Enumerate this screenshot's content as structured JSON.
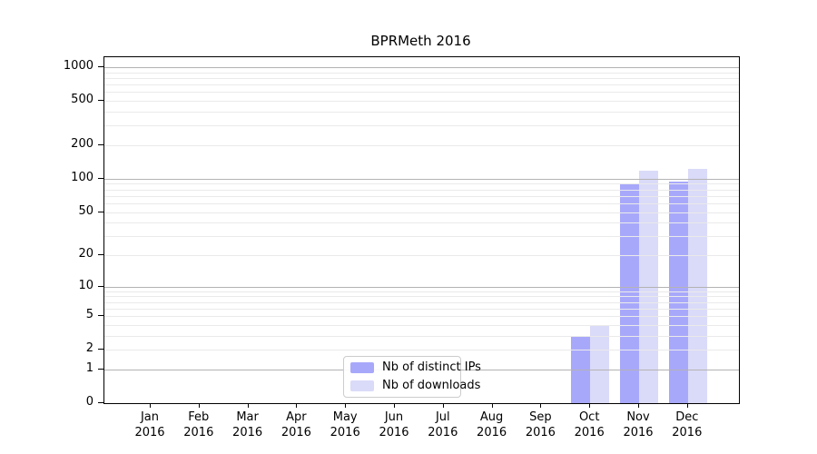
{
  "chart_data": {
    "type": "bar",
    "title": "BPRMeth 2016",
    "y_scale": "log10(1 + value)",
    "grid": true,
    "legend_position": "lower center",
    "y_axis_top": 1230,
    "x_categories": [
      {
        "month": "Jan",
        "year": "2016"
      },
      {
        "month": "Feb",
        "year": "2016"
      },
      {
        "month": "Mar",
        "year": "2016"
      },
      {
        "month": "Apr",
        "year": "2016"
      },
      {
        "month": "May",
        "year": "2016"
      },
      {
        "month": "Jun",
        "year": "2016"
      },
      {
        "month": "Jul",
        "year": "2016"
      },
      {
        "month": "Aug",
        "year": "2016"
      },
      {
        "month": "Sep",
        "year": "2016"
      },
      {
        "month": "Oct",
        "year": "2016"
      },
      {
        "month": "Nov",
        "year": "2016"
      },
      {
        "month": "Dec",
        "year": "2016"
      }
    ],
    "y_ticks": [
      {
        "value": 0,
        "label": "0"
      },
      {
        "value": 1,
        "label": "1"
      },
      {
        "value": 2,
        "label": "2"
      },
      {
        "value": 5,
        "label": "5"
      },
      {
        "value": 10,
        "label": "10"
      },
      {
        "value": 20,
        "label": "20"
      },
      {
        "value": 50,
        "label": "50"
      },
      {
        "value": 100,
        "label": "100"
      },
      {
        "value": 200,
        "label": "200"
      },
      {
        "value": 500,
        "label": "500"
      },
      {
        "value": 1000,
        "label": "1000"
      }
    ],
    "series": [
      {
        "name": "Nb of distinct IPs",
        "color": "#a8a8fb",
        "values": [
          0,
          0,
          0,
          0,
          0,
          0,
          0,
          0,
          0,
          3,
          91,
          94
        ]
      },
      {
        "name": "Nb of downloads",
        "color": "#dadaf9",
        "values": [
          0,
          0,
          0,
          0,
          0,
          0,
          0,
          0,
          0,
          4,
          118,
          123
        ]
      }
    ],
    "colors": {
      "major_grid": "#b3b3b3",
      "minor_grid": "#eaeaea",
      "spine": "#000000",
      "legend_border": "#cccccc",
      "background": "#ffffff"
    }
  }
}
